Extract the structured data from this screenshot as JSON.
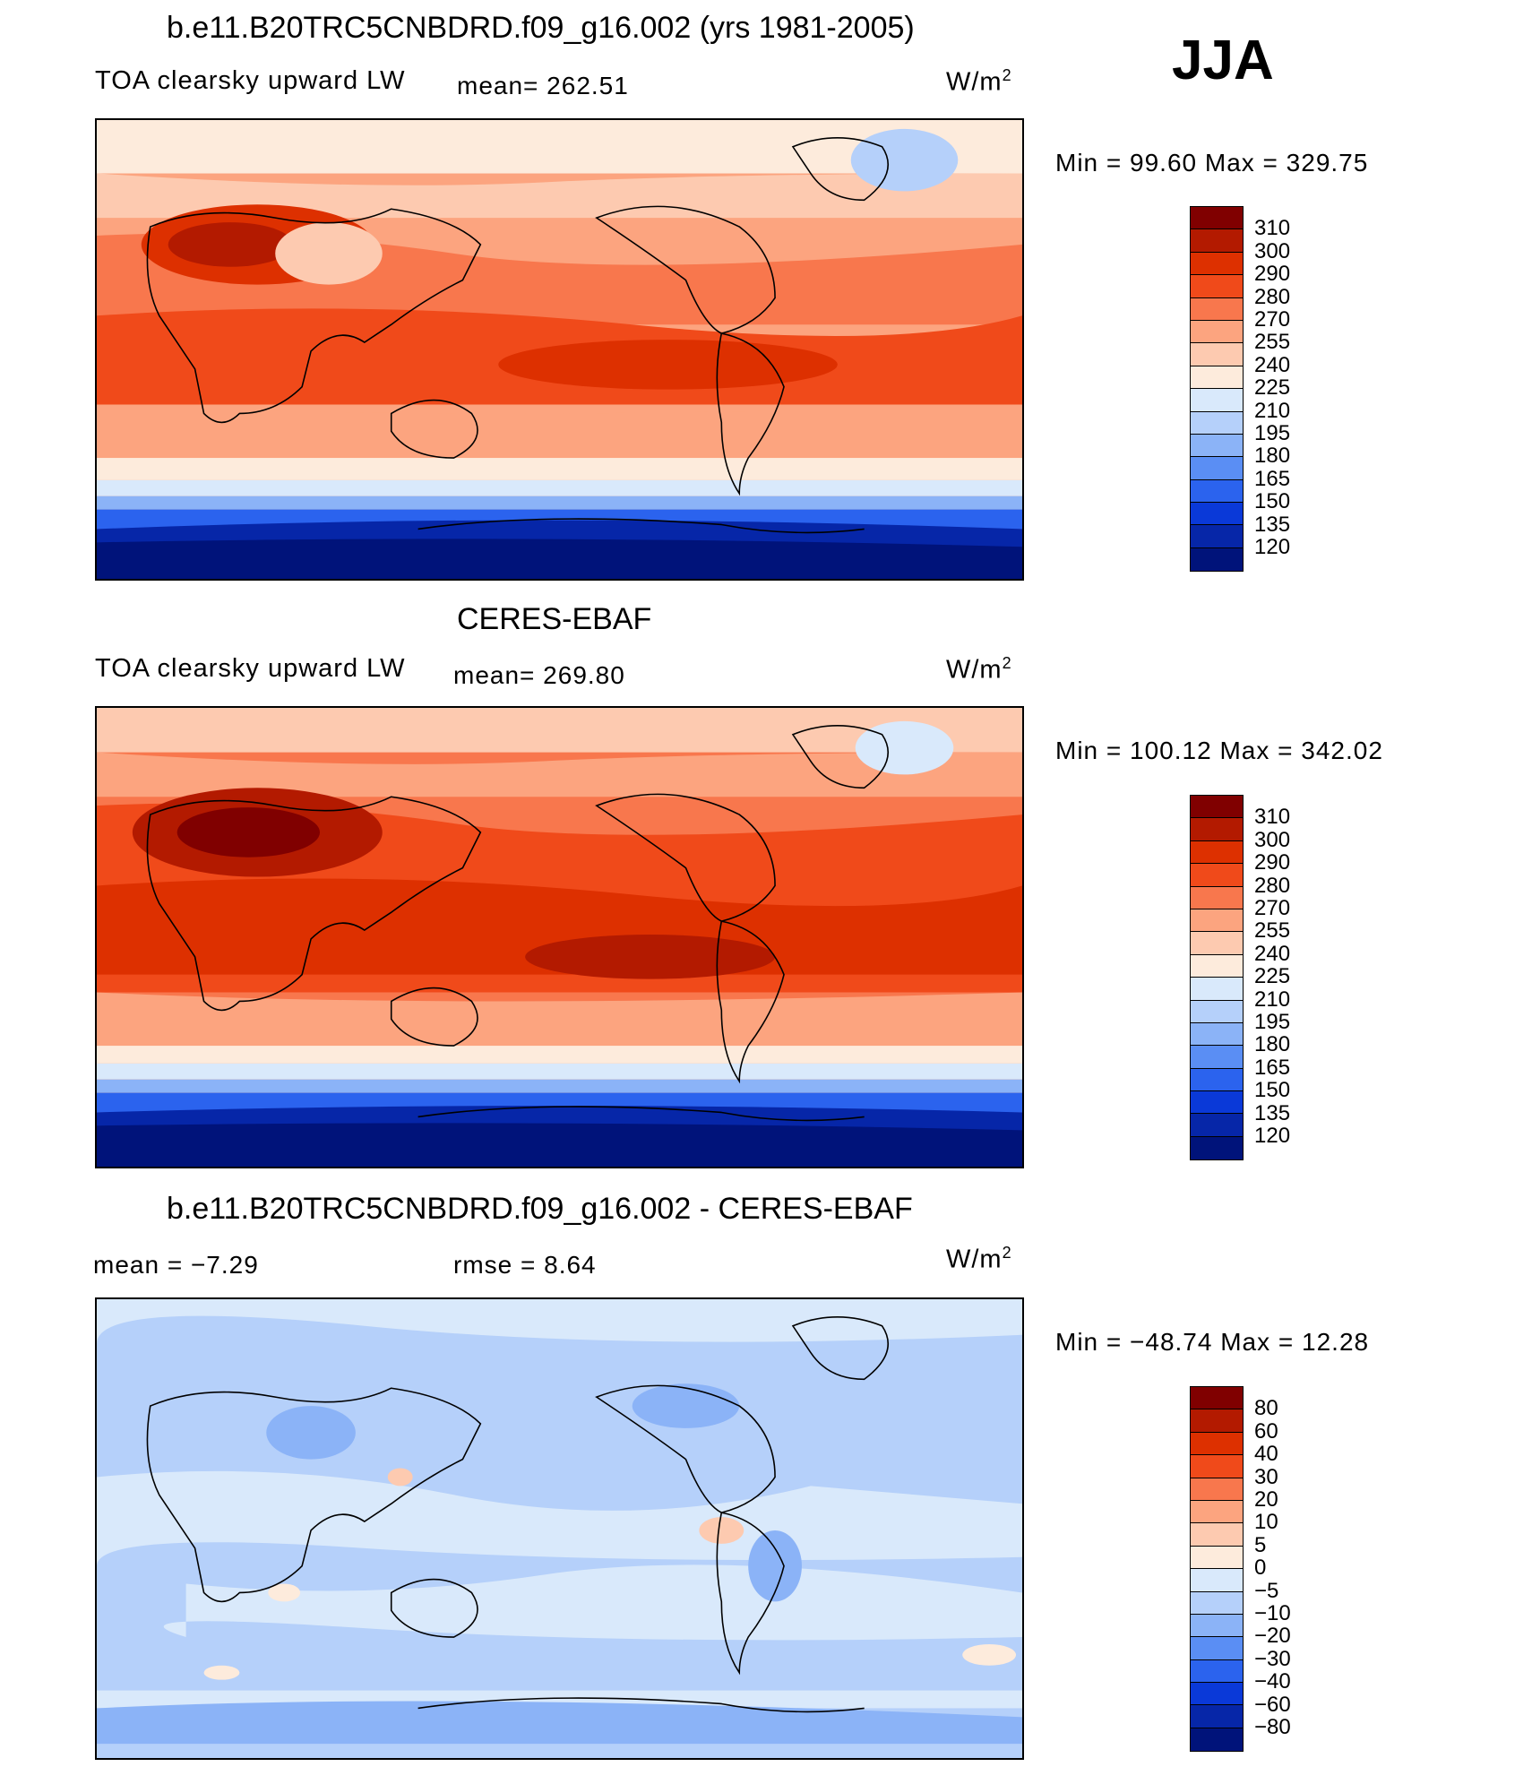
{
  "season": "JJA",
  "panels": [
    {
      "title": "b.e11.B20TRC5CNBDRD.f09_g16.002 (yrs 1981-2005)",
      "variable": "TOA clearsky upward LW",
      "mean_text": "mean=  262.51",
      "units": "W/m",
      "units_sup": "2",
      "minmax": "Min  =   99.60  Max  =  329.75",
      "colorbar_labels": [
        "310",
        "300",
        "290",
        "280",
        "270",
        "255",
        "240",
        "225",
        "210",
        "195",
        "180",
        "165",
        "150",
        "135",
        "120"
      ],
      "colorbar_colors": [
        "#800000",
        "#b31a00",
        "#dd3000",
        "#f04a1a",
        "#f8774d",
        "#fca47f",
        "#fdcab0",
        "#fdebdc",
        "#d9e9fb",
        "#b5d0fa",
        "#8bb3f7",
        "#5a8ef4",
        "#2b63ee",
        "#0a39d8",
        "#0626a8",
        "#00137a"
      ],
      "value_range": [
        99.6,
        329.75
      ]
    },
    {
      "title": "CERES-EBAF",
      "variable": "TOA clearsky upward LW",
      "mean_text": "mean=  269.80",
      "units": "W/m",
      "units_sup": "2",
      "minmax": "Min  =  100.12  Max  =  342.02",
      "colorbar_labels": [
        "310",
        "300",
        "290",
        "280",
        "270",
        "255",
        "240",
        "225",
        "210",
        "195",
        "180",
        "165",
        "150",
        "135",
        "120"
      ],
      "colorbar_colors": [
        "#800000",
        "#b31a00",
        "#dd3000",
        "#f04a1a",
        "#f8774d",
        "#fca47f",
        "#fdcab0",
        "#fdebdc",
        "#d9e9fb",
        "#b5d0fa",
        "#8bb3f7",
        "#5a8ef4",
        "#2b63ee",
        "#0a39d8",
        "#0626a8",
        "#00137a"
      ],
      "value_range": [
        100.12,
        342.02
      ]
    },
    {
      "title": "b.e11.B20TRC5CNBDRD.f09_g16.002 - CERES-EBAF",
      "mean_text": "mean  =    −7.29",
      "rmse_text": "rmse  =     8.64",
      "units": "W/m",
      "units_sup": "2",
      "minmax": "Min  =  −48.74  Max  =    12.28",
      "colorbar_labels": [
        "80",
        "60",
        "40",
        "30",
        "20",
        "10",
        "5",
        "0",
        "−5",
        "−10",
        "−20",
        "−30",
        "−40",
        "−60",
        "−80"
      ],
      "colorbar_colors": [
        "#800000",
        "#b31a00",
        "#dd3000",
        "#f04a1a",
        "#f8774d",
        "#fca47f",
        "#fdcab0",
        "#fdebdc",
        "#d9e9fb",
        "#b5d0fa",
        "#8bb3f7",
        "#5a8ef4",
        "#2b63ee",
        "#0a39d8",
        "#0626a8",
        "#00137a"
      ],
      "value_range": [
        -48.74,
        12.28
      ]
    }
  ]
}
